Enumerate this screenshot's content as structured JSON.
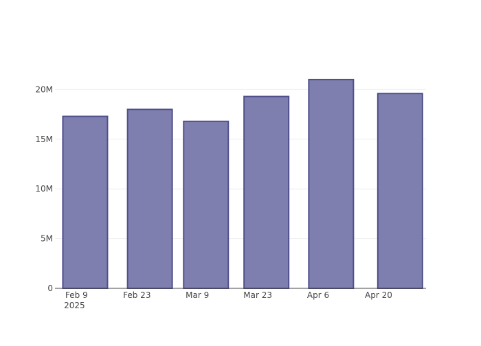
{
  "chart_data": {
    "type": "bar",
    "x": [
      "2025-02-11",
      "2025-02-26",
      "2025-03-11",
      "2025-03-25",
      "2025-04-09",
      "2025-04-25"
    ],
    "values": [
      17300000,
      18000000,
      16800000,
      19300000,
      21000000,
      19600000
    ],
    "color": "#7f7faf",
    "edge_color": "#4f4f8c",
    "xlim": [
      "2025-02-04",
      "2025-05-01"
    ],
    "xticks": [
      {
        "value": "2025-02-09",
        "label": "Feb 9\n2025"
      },
      {
        "value": "2025-02-23",
        "label": "Feb 23"
      },
      {
        "value": "2025-03-09",
        "label": "Mar 9"
      },
      {
        "value": "2025-03-23",
        "label": "Mar 23"
      },
      {
        "value": "2025-04-06",
        "label": "Apr 6"
      },
      {
        "value": "2025-04-20",
        "label": "Apr 20"
      }
    ],
    "ylim": [
      0,
      22100000
    ],
    "yticks": [
      0,
      {
        "value": 5000000,
        "label": "5M"
      },
      {
        "value": 10000000,
        "label": "10M"
      },
      {
        "value": 15000000,
        "label": "15M"
      },
      {
        "value": 20000000,
        "label": "20M"
      }
    ],
    "grid": true
  }
}
